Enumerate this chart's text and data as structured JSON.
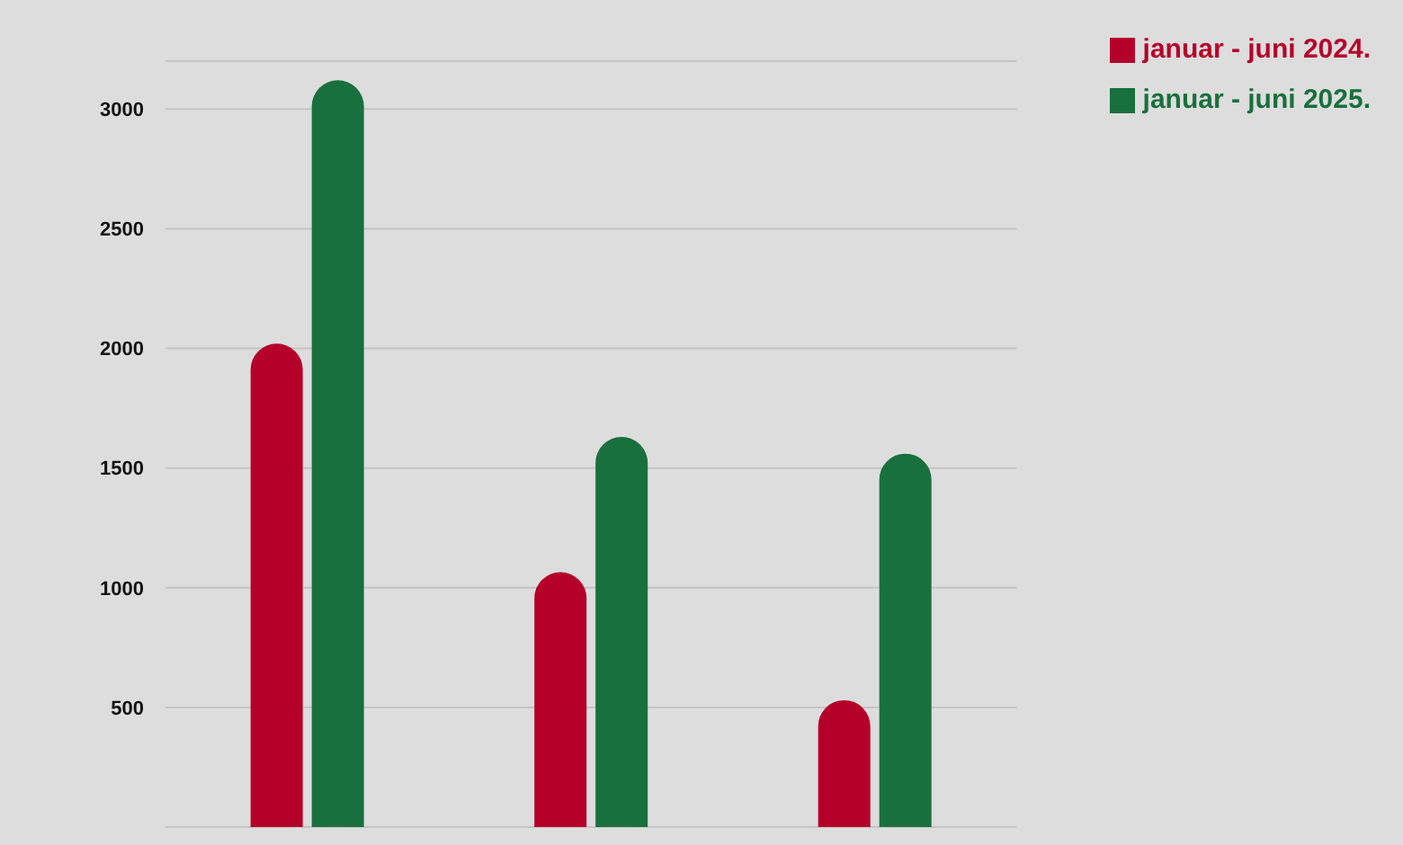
{
  "chart_data": {
    "type": "bar",
    "categories": [
      null,
      null,
      null
    ],
    "series": [
      {
        "name": "januar - juni 2024.",
        "color": "#b5002a",
        "values": [
          2020,
          1065,
          530
        ]
      },
      {
        "name": "januar - juni 2025.",
        "color": "#18703c",
        "values": [
          3120,
          1630,
          1560
        ]
      }
    ],
    "ylim": [
      0,
      3200
    ],
    "yticks": [
      500,
      1000,
      1500,
      2000,
      2500,
      3000
    ],
    "grid": "y",
    "legend": "top right",
    "tick_labels": "y"
  }
}
